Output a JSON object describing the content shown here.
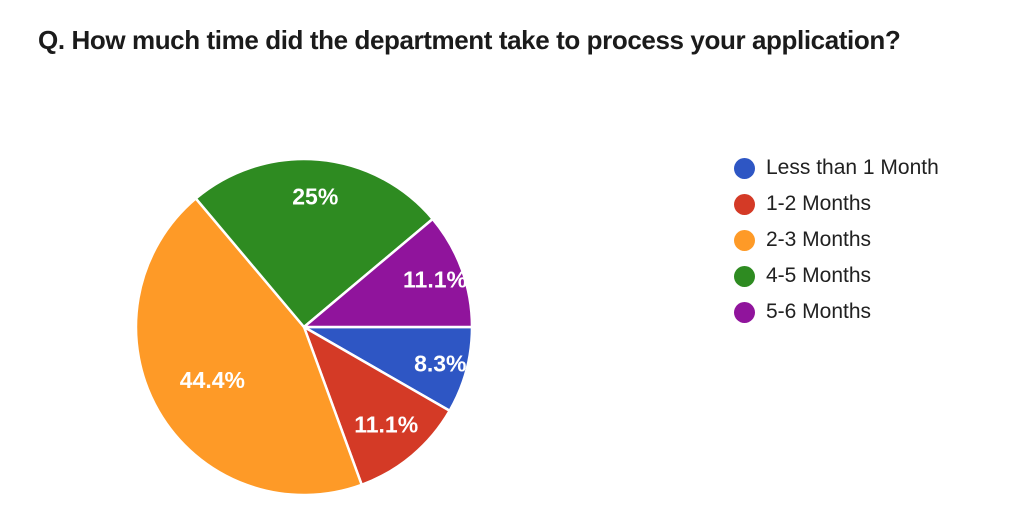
{
  "chart_data": {
    "type": "pie",
    "title": "Q. How much time did the department take to process your application?",
    "legend_position": "right",
    "direction": "clockwise",
    "start_angle_deg_from_east": 0,
    "slices": [
      {
        "label": "Less than 1 Month",
        "value": 8.3,
        "display": "8.3%",
        "color": "#2E56C4"
      },
      {
        "label": "1-2 Months",
        "value": 11.1,
        "display": "11.1%",
        "color": "#D43A26"
      },
      {
        "label": "2-3 Months",
        "value": 44.4,
        "display": "44.4%",
        "color": "#FE9A27"
      },
      {
        "label": "4-5 Months",
        "value": 25,
        "display": "25%",
        "color": "#2E8B21"
      },
      {
        "label": "5-6 Months",
        "value": 11.1,
        "display": "11.1%",
        "color": "#90149C"
      }
    ],
    "slice_label_color": "#FFFFFF",
    "slice_separator_color": "#FFFFFF",
    "text_color": "#212121",
    "background_color": "#FFFFFF"
  }
}
